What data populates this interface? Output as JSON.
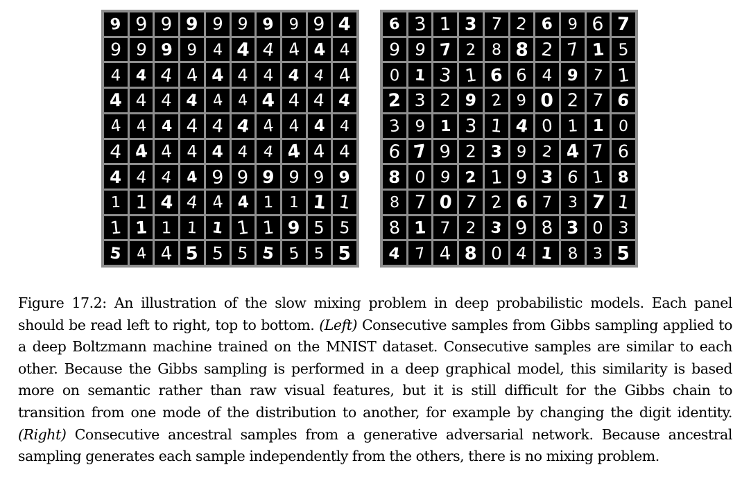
{
  "figure": {
    "left_panel": {
      "samples": [
        "9",
        "9",
        "9",
        "9",
        "9",
        "9",
        "9",
        "9",
        "9",
        "4",
        "9",
        "9",
        "9",
        "9",
        "4",
        "4",
        "4",
        "4",
        "4",
        "4",
        "4",
        "4",
        "4",
        "4",
        "4",
        "4",
        "4",
        "4",
        "4",
        "4",
        "4",
        "4",
        "4",
        "4",
        "4",
        "4",
        "4",
        "4",
        "4",
        "4",
        "4",
        "4",
        "4",
        "4",
        "4",
        "4",
        "4",
        "4",
        "4",
        "4",
        "4",
        "4",
        "4",
        "4",
        "4",
        "4",
        "4",
        "4",
        "4",
        "4",
        "4",
        "4",
        "4",
        "4",
        "9",
        "9",
        "9",
        "9",
        "9",
        "9",
        "1",
        "1",
        "4",
        "4",
        "4",
        "4",
        "1",
        "1",
        "1",
        "1",
        "1",
        "1",
        "1",
        "1",
        "1",
        "1",
        "1",
        "9",
        "5",
        "5",
        "5",
        "4",
        "4",
        "5",
        "5",
        "5",
        "5",
        "5",
        "5",
        "5"
      ]
    },
    "right_panel": {
      "samples": [
        "6",
        "3",
        "1",
        "3",
        "7",
        "2",
        "6",
        "9",
        "6",
        "7",
        "9",
        "9",
        "7",
        "2",
        "8",
        "8",
        "2",
        "7",
        "1",
        "5",
        "0",
        "1",
        "3",
        "1",
        "6",
        "6",
        "4",
        "9",
        "7",
        "1",
        "2",
        "3",
        "2",
        "9",
        "2",
        "9",
        "0",
        "2",
        "7",
        "6",
        "3",
        "9",
        "1",
        "3",
        "1",
        "4",
        "0",
        "1",
        "1",
        "0",
        "6",
        "7",
        "9",
        "2",
        "3",
        "9",
        "2",
        "4",
        "7",
        "6",
        "8",
        "0",
        "9",
        "2",
        "1",
        "9",
        "3",
        "6",
        "1",
        "8",
        "8",
        "7",
        "0",
        "7",
        "2",
        "6",
        "7",
        "3",
        "7",
        "1",
        "8",
        "1",
        "7",
        "2",
        "3",
        "9",
        "8",
        "3",
        "0",
        "3",
        "4",
        "7",
        "4",
        "8",
        "0",
        "4",
        "1",
        "8",
        "3",
        "5"
      ]
    },
    "caption": {
      "lead": "Figure 17.2: An illustration of the slow mixing problem in deep probabilistic models. Each panel should be read left to right, top to bottom.",
      "left_label": "(Left)",
      "left_text": "Consecutive samples from Gibbs sampling applied to a deep Boltzmann machine trained on the MNIST dataset. Consecutive samples are similar to each other. Because the Gibbs sampling is performed in a deep graphical model, this similarity is based more on semantic rather than raw visual features, but it is still difficult for the Gibbs chain to transition from one mode of the distribution to another, for example by changing the digit identity.",
      "right_label": "(Right)",
      "right_text": "Consecutive ancestral samples from a generative adversarial network. Because ancestral sampling generates each sample independently from the others, there is no mixing problem."
    }
  }
}
